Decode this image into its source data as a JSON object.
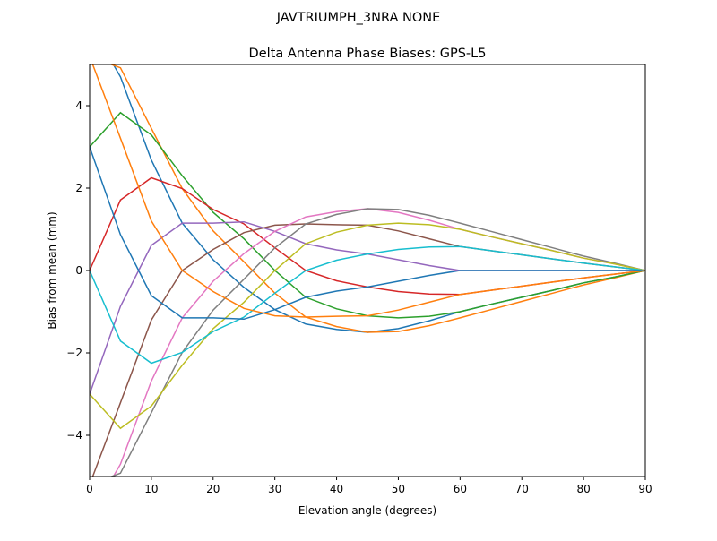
{
  "chart_data": {
    "type": "line",
    "suptitle": "JAVTRIUMPH_3NRA NONE",
    "title": "Delta Antenna Phase Biases: GPS-L5",
    "xlabel": "Elevation angle (degrees)",
    "ylabel": "Bias from mean (mm)",
    "xlim": [
      0,
      90
    ],
    "ylim": [
      -5,
      5
    ],
    "xticks": [
      0,
      10,
      20,
      30,
      40,
      50,
      60,
      70,
      80,
      90
    ],
    "yticks": [
      -4,
      -2,
      0,
      2,
      4
    ],
    "grid": false,
    "legend": "none",
    "colors": [
      "#1f77b4",
      "#ff7f0e",
      "#2ca02c",
      "#d62728",
      "#9467bd",
      "#8c564b",
      "#e377c2",
      "#7f7f7f",
      "#bcbd22",
      "#17becf"
    ],
    "x": [
      0,
      5,
      10,
      15,
      20,
      25,
      30,
      35,
      40,
      45,
      50,
      55,
      60,
      65,
      70,
      75,
      80,
      85,
      90
    ],
    "series": [
      {
        "values": [
          6,
          4.7,
          2.68,
          1.15,
          0.26,
          -0.41,
          -0.95,
          -1.3,
          -1.43,
          -1.5,
          -1.41,
          -1.22,
          -1.0,
          -0.82,
          -0.65,
          -0.48,
          -0.3,
          -0.16,
          0
        ]
      },
      {
        "values": [
          5.2,
          4.92,
          3.45,
          1.99,
          0.96,
          0.21,
          -0.55,
          -1.13,
          -1.36,
          -1.5,
          -1.48,
          -1.34,
          -1.15,
          -0.95,
          -0.75,
          -0.55,
          -0.35,
          -0.18,
          0
        ]
      },
      {
        "values": [
          3,
          3.83,
          3.29,
          2.3,
          1.41,
          0.77,
          0,
          -0.65,
          -0.93,
          -1.1,
          -1.15,
          -1.11,
          -1.0,
          -0.82,
          -0.65,
          -0.48,
          -0.3,
          -0.16,
          0
        ]
      },
      {
        "values": [
          0,
          1.71,
          2.25,
          1.99,
          1.48,
          1.13,
          0.55,
          0,
          -0.25,
          -0.4,
          -0.51,
          -0.57,
          -0.58,
          -0.48,
          -0.38,
          -0.28,
          -0.18,
          -0.09,
          0
        ]
      },
      {
        "values": [
          -3,
          -0.87,
          0.61,
          1.15,
          1.15,
          1.18,
          0.95,
          0.65,
          0.5,
          0.4,
          0.26,
          0.12,
          0,
          0,
          0,
          0,
          0,
          0,
          0
        ]
      },
      {
        "values": [
          -5.2,
          -3.21,
          -1.2,
          0,
          0.51,
          0.92,
          1.1,
          1.13,
          1.11,
          1.1,
          0.96,
          0.77,
          0.58,
          0.48,
          0.38,
          0.28,
          0.18,
          0.09,
          0
        ]
      },
      {
        "values": [
          -6,
          -4.7,
          -2.68,
          -1.15,
          -0.26,
          0.41,
          0.95,
          1.3,
          1.43,
          1.5,
          1.41,
          1.22,
          1.0,
          0.82,
          0.65,
          0.48,
          0.3,
          0.16,
          0
        ]
      },
      {
        "values": [
          -5.2,
          -4.92,
          -3.45,
          -1.99,
          -0.96,
          -0.21,
          0.55,
          1.13,
          1.36,
          1.5,
          1.48,
          1.34,
          1.15,
          0.95,
          0.75,
          0.55,
          0.35,
          0.18,
          0
        ]
      },
      {
        "values": [
          -3,
          -3.83,
          -3.29,
          -2.3,
          -1.41,
          -0.77,
          0,
          0.65,
          0.93,
          1.1,
          1.15,
          1.11,
          1.0,
          0.82,
          0.65,
          0.48,
          0.3,
          0.16,
          0
        ]
      },
      {
        "values": [
          0,
          -1.71,
          -2.25,
          -1.99,
          -1.48,
          -1.13,
          -0.55,
          0,
          0.25,
          0.4,
          0.51,
          0.57,
          0.58,
          0.48,
          0.38,
          0.28,
          0.18,
          0.09,
          0
        ]
      },
      {
        "values": [
          3,
          0.87,
          -0.61,
          -1.15,
          -1.15,
          -1.18,
          -0.95,
          -0.65,
          -0.5,
          -0.4,
          -0.26,
          -0.12,
          0,
          0,
          0,
          0,
          0,
          0,
          0
        ]
      },
      {
        "values": [
          5.2,
          3.21,
          1.2,
          0,
          -0.51,
          -0.92,
          -1.1,
          -1.13,
          -1.11,
          -1.1,
          -0.96,
          -0.77,
          -0.58,
          -0.48,
          -0.38,
          -0.28,
          -0.18,
          -0.09,
          0
        ]
      }
    ]
  }
}
